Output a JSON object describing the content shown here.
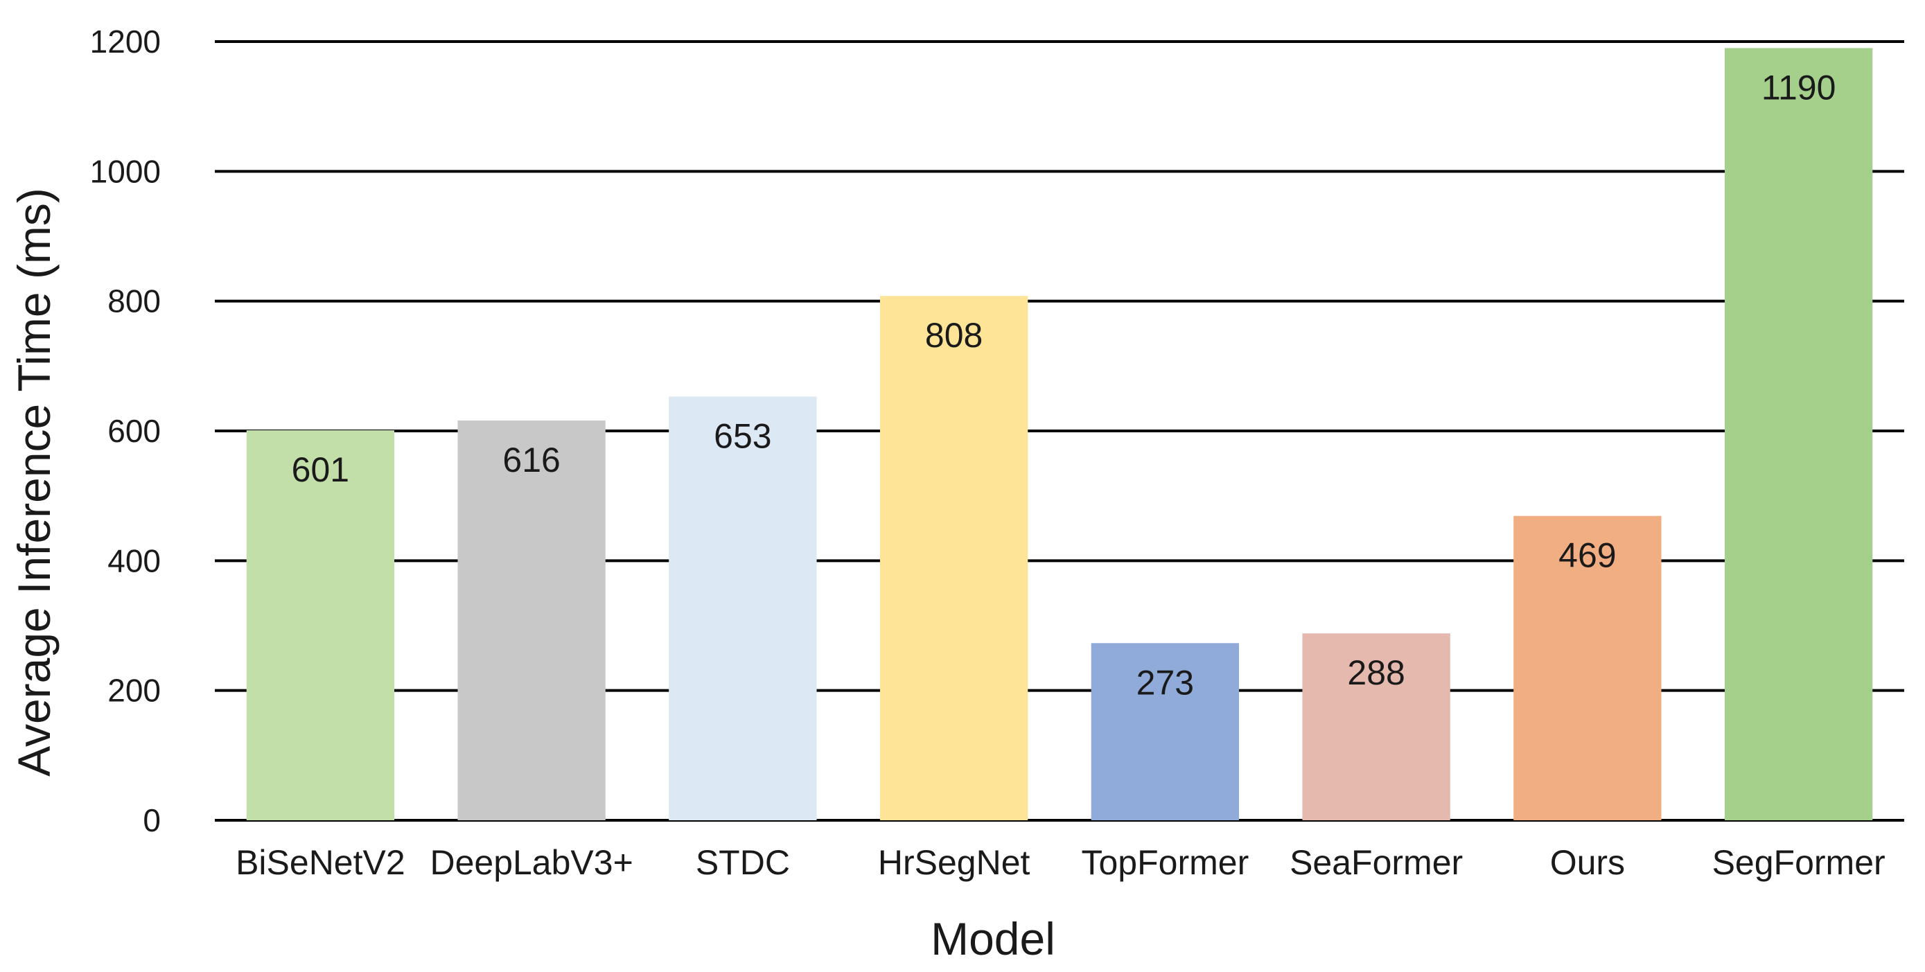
{
  "chart_data": {
    "type": "bar",
    "title": "",
    "xlabel": "Model",
    "ylabel": "Average Inference Time (ms)",
    "ylim": [
      0,
      1200
    ],
    "yticks": [
      0,
      200,
      400,
      600,
      800,
      1000,
      1200
    ],
    "grid": true,
    "legend": "none",
    "categories": [
      "BiSeNetV2",
      "DeepLabV3+",
      "STDC",
      "HrSegNet",
      "TopFormer",
      "SeaFormer",
      "Ours",
      "SegFormer"
    ],
    "values": [
      601,
      616,
      653,
      808,
      273,
      288,
      469,
      1190
    ],
    "colors": [
      "#c3dfa9",
      "#c8c8c8",
      "#dde8f5",
      "#fde496",
      "#90abd9",
      "#e6b9ae",
      "#f2ae83",
      "#a5d08c"
    ]
  }
}
